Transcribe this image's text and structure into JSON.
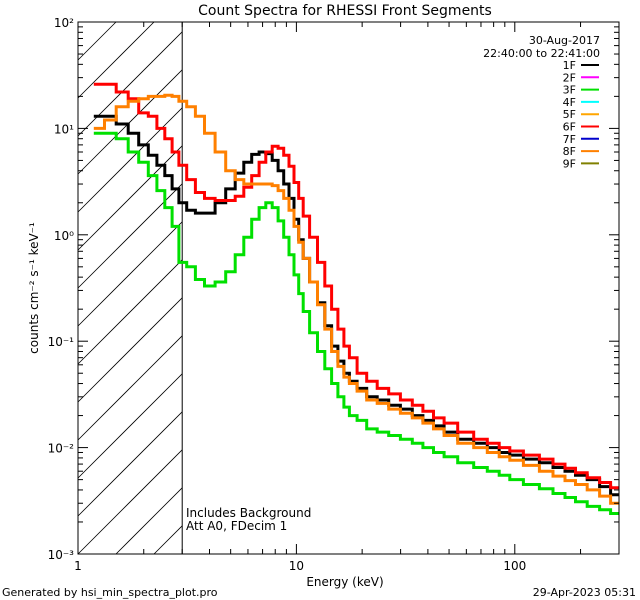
{
  "chart_data": {
    "type": "line",
    "title": "Count Spectra for RHESSI Front Segments",
    "xlabel": "Energy (keV)",
    "ylabel": "counts cm⁻² s⁻¹ keV⁻¹",
    "x_scale": "log",
    "y_scale": "log",
    "xlim": [
      1,
      300
    ],
    "ylim": [
      0.001,
      100
    ],
    "x_ticks": [
      {
        "value": 1,
        "label": "1"
      },
      {
        "value": 10,
        "label": "10"
      },
      {
        "value": 100,
        "label": "100"
      }
    ],
    "y_ticks": [
      {
        "value": 100,
        "label": "10²"
      },
      {
        "value": 10,
        "label": "10¹"
      },
      {
        "value": 1,
        "label": "10⁰"
      },
      {
        "value": 0.1,
        "label": "10⁻¹"
      },
      {
        "value": 0.01,
        "label": "10⁻²"
      },
      {
        "value": 0.001,
        "label": "10⁻³"
      }
    ],
    "shaded_region": {
      "x_min": 1,
      "x_max": 3,
      "style": "hatched"
    },
    "legend_date": "30-Aug-2017",
    "legend_time": "22:40:00 to 22:41:00",
    "legend": [
      {
        "name": "1F",
        "color": "#000000"
      },
      {
        "name": "2F",
        "color": "#ff00ff"
      },
      {
        "name": "3F",
        "color": "#00e000"
      },
      {
        "name": "4F",
        "color": "#00ffff"
      },
      {
        "name": "5F",
        "color": "#ffa500"
      },
      {
        "name": "6F",
        "color": "#ff0000"
      },
      {
        "name": "7F",
        "color": "#0000cc"
      },
      {
        "name": "8F",
        "color": "#ff8000"
      },
      {
        "name": "9F",
        "color": "#808000"
      }
    ],
    "annotations": [
      "Includes Background",
      "Att A0, FDecim 1"
    ],
    "series": [
      {
        "name": "1F",
        "color": "#000000",
        "points": [
          [
            1.25,
            13
          ],
          [
            1.4,
            13
          ],
          [
            1.6,
            11
          ],
          [
            1.8,
            9
          ],
          [
            2,
            7
          ],
          [
            2.2,
            5.6
          ],
          [
            2.4,
            4.5
          ],
          [
            2.6,
            3.6
          ],
          [
            2.8,
            2.7
          ],
          [
            3,
            2
          ],
          [
            3.3,
            1.7
          ],
          [
            3.6,
            1.6
          ],
          [
            4,
            1.6
          ],
          [
            4.5,
            2
          ],
          [
            5,
            2.7
          ],
          [
            5.5,
            3.8
          ],
          [
            6,
            4.8
          ],
          [
            6.5,
            5.7
          ],
          [
            7,
            6
          ],
          [
            7.5,
            5.8
          ],
          [
            8,
            5
          ],
          [
            8.5,
            4
          ],
          [
            9,
            3
          ],
          [
            9.5,
            2.2
          ],
          [
            10,
            1.4
          ],
          [
            10.5,
            0.9
          ],
          [
            11,
            0.6
          ],
          [
            12,
            0.36
          ],
          [
            13,
            0.23
          ],
          [
            14,
            0.14
          ],
          [
            15,
            0.09
          ],
          [
            16,
            0.065
          ],
          [
            17,
            0.05
          ],
          [
            18,
            0.042
          ],
          [
            20,
            0.036
          ],
          [
            22,
            0.03
          ],
          [
            25,
            0.028
          ],
          [
            28,
            0.025
          ],
          [
            32,
            0.023
          ],
          [
            36,
            0.02
          ],
          [
            40,
            0.018
          ],
          [
            45,
            0.016
          ],
          [
            50,
            0.014
          ],
          [
            60,
            0.012
          ],
          [
            70,
            0.011
          ],
          [
            80,
            0.01
          ],
          [
            90,
            0.009
          ],
          [
            100,
            0.0085
          ],
          [
            120,
            0.0078
          ],
          [
            140,
            0.0072
          ],
          [
            160,
            0.0065
          ],
          [
            180,
            0.006
          ],
          [
            200,
            0.0055
          ],
          [
            230,
            0.005
          ],
          [
            260,
            0.0043
          ],
          [
            290,
            0.0036
          ]
        ]
      },
      {
        "name": "3F",
        "color": "#00e000",
        "points": [
          [
            1.25,
            9
          ],
          [
            1.4,
            9
          ],
          [
            1.6,
            8
          ],
          [
            1.8,
            6
          ],
          [
            2,
            4.8
          ],
          [
            2.2,
            3.6
          ],
          [
            2.4,
            2.6
          ],
          [
            2.6,
            1.8
          ],
          [
            2.8,
            1.2
          ],
          [
            3,
            0.55
          ],
          [
            3.3,
            0.5
          ],
          [
            3.6,
            0.38
          ],
          [
            4,
            0.33
          ],
          [
            4.5,
            0.36
          ],
          [
            5,
            0.45
          ],
          [
            5.5,
            0.65
          ],
          [
            6,
            0.95
          ],
          [
            6.5,
            1.4
          ],
          [
            7,
            1.8
          ],
          [
            7.5,
            2
          ],
          [
            8,
            1.8
          ],
          [
            8.5,
            1.35
          ],
          [
            9,
            0.95
          ],
          [
            9.5,
            0.65
          ],
          [
            10,
            0.42
          ],
          [
            10.5,
            0.28
          ],
          [
            11,
            0.19
          ],
          [
            12,
            0.12
          ],
          [
            13,
            0.08
          ],
          [
            14,
            0.055
          ],
          [
            15,
            0.04
          ],
          [
            16,
            0.03
          ],
          [
            17,
            0.024
          ],
          [
            18,
            0.02
          ],
          [
            20,
            0.018
          ],
          [
            22,
            0.015
          ],
          [
            25,
            0.014
          ],
          [
            28,
            0.013
          ],
          [
            32,
            0.012
          ],
          [
            36,
            0.011
          ],
          [
            40,
            0.01
          ],
          [
            45,
            0.009
          ],
          [
            50,
            0.0082
          ],
          [
            60,
            0.0072
          ],
          [
            70,
            0.0065
          ],
          [
            80,
            0.006
          ],
          [
            90,
            0.0055
          ],
          [
            100,
            0.005
          ],
          [
            120,
            0.0045
          ],
          [
            140,
            0.0041
          ],
          [
            160,
            0.0037
          ],
          [
            180,
            0.0034
          ],
          [
            200,
            0.0031
          ],
          [
            230,
            0.0028
          ],
          [
            260,
            0.0026
          ],
          [
            290,
            0.0024
          ]
        ]
      },
      {
        "name": "6F",
        "color": "#ff0000",
        "points": [
          [
            1.25,
            26
          ],
          [
            1.4,
            26
          ],
          [
            1.6,
            22
          ],
          [
            1.8,
            19
          ],
          [
            2,
            14
          ],
          [
            2.2,
            13
          ],
          [
            2.4,
            10
          ],
          [
            2.6,
            8
          ],
          [
            2.8,
            6
          ],
          [
            3,
            4.5
          ],
          [
            3.3,
            3.3
          ],
          [
            3.6,
            2.5
          ],
          [
            4,
            2.2
          ],
          [
            4.5,
            2.1
          ],
          [
            5,
            2.1
          ],
          [
            5.5,
            2.3
          ],
          [
            6,
            2.8
          ],
          [
            6.5,
            3.6
          ],
          [
            7,
            4.8
          ],
          [
            7.5,
            6
          ],
          [
            8,
            6.8
          ],
          [
            8.5,
            6.5
          ],
          [
            9,
            5.6
          ],
          [
            9.5,
            4.4
          ],
          [
            10,
            3.1
          ],
          [
            10.5,
            2.2
          ],
          [
            11,
            1.5
          ],
          [
            12,
            0.95
          ],
          [
            13,
            0.55
          ],
          [
            14,
            0.33
          ],
          [
            15,
            0.2
          ],
          [
            16,
            0.13
          ],
          [
            17,
            0.09
          ],
          [
            18,
            0.07
          ],
          [
            20,
            0.05
          ],
          [
            22,
            0.042
          ],
          [
            25,
            0.036
          ],
          [
            28,
            0.032
          ],
          [
            32,
            0.028
          ],
          [
            36,
            0.025
          ],
          [
            40,
            0.022
          ],
          [
            45,
            0.019
          ],
          [
            50,
            0.017
          ],
          [
            60,
            0.014
          ],
          [
            70,
            0.012
          ],
          [
            80,
            0.011
          ],
          [
            90,
            0.01
          ],
          [
            100,
            0.0093
          ],
          [
            120,
            0.0085
          ],
          [
            140,
            0.0078
          ],
          [
            160,
            0.007
          ],
          [
            180,
            0.0064
          ],
          [
            200,
            0.0058
          ],
          [
            230,
            0.0052
          ],
          [
            260,
            0.0047
          ],
          [
            290,
            0.0042
          ]
        ]
      },
      {
        "name": "8F",
        "color": "#ff8000",
        "points": [
          [
            1.25,
            10
          ],
          [
            1.4,
            12
          ],
          [
            1.6,
            16
          ],
          [
            1.8,
            18
          ],
          [
            2,
            19
          ],
          [
            2.2,
            20
          ],
          [
            2.4,
            20
          ],
          [
            2.6,
            20.5
          ],
          [
            2.8,
            20
          ],
          [
            3,
            18
          ],
          [
            3.3,
            16
          ],
          [
            3.6,
            13
          ],
          [
            4,
            9
          ],
          [
            4.5,
            6
          ],
          [
            5,
            4
          ],
          [
            5.5,
            3.3
          ],
          [
            6,
            3
          ],
          [
            6.5,
            3
          ],
          [
            7,
            3
          ],
          [
            7.5,
            3
          ],
          [
            8,
            2.9
          ],
          [
            8.5,
            2.6
          ],
          [
            9,
            2.2
          ],
          [
            9.5,
            1.7
          ],
          [
            10,
            1.2
          ],
          [
            10.5,
            0.85
          ],
          [
            11,
            0.6
          ],
          [
            12,
            0.36
          ],
          [
            13,
            0.22
          ],
          [
            14,
            0.13
          ],
          [
            15,
            0.08
          ],
          [
            16,
            0.058
          ],
          [
            17,
            0.046
          ],
          [
            18,
            0.04
          ],
          [
            20,
            0.034
          ],
          [
            22,
            0.028
          ],
          [
            25,
            0.026
          ],
          [
            28,
            0.023
          ],
          [
            32,
            0.021
          ],
          [
            36,
            0.019
          ],
          [
            40,
            0.017
          ],
          [
            45,
            0.015
          ],
          [
            50,
            0.013
          ],
          [
            60,
            0.011
          ],
          [
            70,
            0.01
          ],
          [
            80,
            0.009
          ],
          [
            90,
            0.0082
          ],
          [
            100,
            0.0076
          ],
          [
            120,
            0.0068
          ],
          [
            140,
            0.006
          ],
          [
            160,
            0.0054
          ],
          [
            180,
            0.0049
          ],
          [
            200,
            0.0045
          ],
          [
            230,
            0.004
          ],
          [
            260,
            0.0035
          ],
          [
            290,
            0.003
          ]
        ]
      }
    ]
  },
  "footer": {
    "left": "Generated by hsi_min_spectra_plot.pro",
    "right": "29-Apr-2023 05:31"
  }
}
